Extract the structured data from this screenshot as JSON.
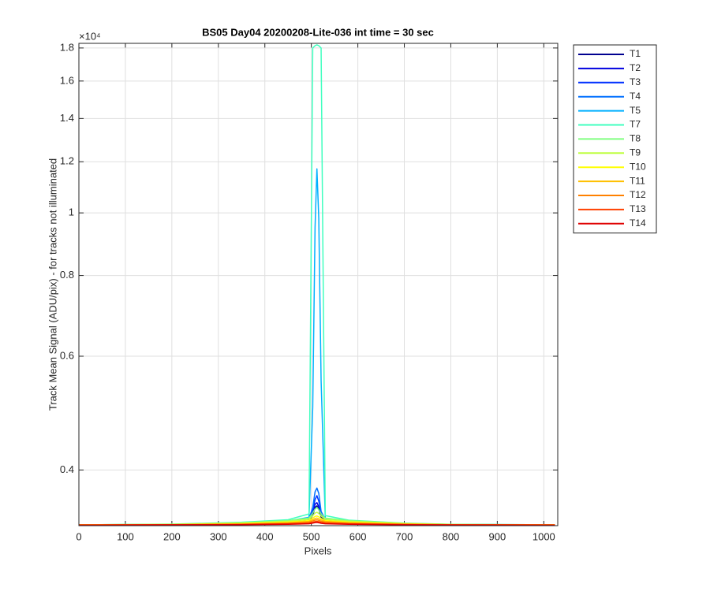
{
  "chart_data": {
    "type": "line",
    "title": "BS05 Day04 20200208-Lite-036 int time = 30 sec",
    "x_label": "Pixels",
    "y_label": "Track Mean Signal (ADU/pix) - for tracks not illuminated",
    "y_exponent_label": "×10⁴",
    "yscale": "log",
    "grid": true,
    "legend": "outside-right",
    "xlim": [
      0,
      1030
    ],
    "xticks": [
      0,
      100,
      200,
      300,
      400,
      500,
      600,
      700,
      800,
      900,
      1000
    ],
    "ylim": [
      3280,
      18300
    ],
    "yticks": [
      {
        "value": 4000,
        "label": "0.4"
      },
      {
        "value": 6000,
        "label": "0.6"
      },
      {
        "value": 8000,
        "label": "0.8"
      },
      {
        "value": 10000,
        "label": "1"
      },
      {
        "value": 12000,
        "label": "1.2"
      },
      {
        "value": 14000,
        "label": "1.4"
      },
      {
        "value": 16000,
        "label": "1.6"
      },
      {
        "value": 18000,
        "label": "1.8"
      }
    ],
    "x": [
      0,
      200,
      350,
      450,
      495,
      503,
      508,
      512,
      516,
      521,
      530,
      580,
      700,
      800,
      1024
    ],
    "series": [
      {
        "name": "T1",
        "color": "#00008f",
        "values": [
          3290,
          3292,
          3300,
          3320,
          3340,
          3400,
          3500,
          3520,
          3480,
          3380,
          3340,
          3320,
          3300,
          3292,
          3290
        ]
      },
      {
        "name": "T2",
        "color": "#0000df",
        "values": [
          3290,
          3292,
          3302,
          3322,
          3345,
          3420,
          3540,
          3560,
          3510,
          3400,
          3345,
          3322,
          3300,
          3292,
          3290
        ]
      },
      {
        "name": "T3",
        "color": "#0030ff",
        "values": [
          3290,
          3293,
          3304,
          3325,
          3350,
          3450,
          3600,
          3650,
          3580,
          3420,
          3350,
          3325,
          3302,
          3293,
          3290
        ]
      },
      {
        "name": "T4",
        "color": "#0070ff",
        "values": [
          3290,
          3294,
          3306,
          3330,
          3360,
          3500,
          3700,
          3750,
          3680,
          3450,
          3355,
          3330,
          3304,
          3294,
          3290
        ]
      },
      {
        "name": "T5",
        "color": "#00b0ff",
        "values": [
          3290,
          3295,
          3310,
          3335,
          3380,
          5000,
          9500,
          11700,
          9800,
          5500,
          3360,
          3330,
          3305,
          3295,
          3290
        ]
      },
      {
        "name": "T7",
        "color": "#40ffbf",
        "values": [
          3290,
          3298,
          3320,
          3350,
          3420,
          18000,
          18150,
          18200,
          18150,
          18000,
          3400,
          3345,
          3310,
          3296,
          3290
        ]
      },
      {
        "name": "T8",
        "color": "#80ff80",
        "values": [
          3290,
          3296,
          3315,
          3340,
          3370,
          3430,
          3480,
          3500,
          3470,
          3420,
          3370,
          3340,
          3308,
          3295,
          3290
        ]
      },
      {
        "name": "T9",
        "color": "#bfff40",
        "values": [
          3290,
          3295,
          3310,
          3332,
          3355,
          3400,
          3430,
          3440,
          3425,
          3395,
          3355,
          3332,
          3305,
          3294,
          3290
        ]
      },
      {
        "name": "T10",
        "color": "#ffff00",
        "values": [
          3289,
          3293,
          3305,
          3322,
          3340,
          3370,
          3390,
          3395,
          3385,
          3365,
          3340,
          3322,
          3302,
          3292,
          3289
        ]
      },
      {
        "name": "T11",
        "color": "#ffbf00",
        "values": [
          3289,
          3292,
          3300,
          3315,
          3330,
          3350,
          3365,
          3370,
          3360,
          3348,
          3330,
          3315,
          3299,
          3291,
          3289
        ]
      },
      {
        "name": "T12",
        "color": "#ff8000",
        "values": [
          3288,
          3291,
          3297,
          3308,
          3320,
          3335,
          3345,
          3348,
          3342,
          3332,
          3320,
          3308,
          3296,
          3290,
          3288
        ]
      },
      {
        "name": "T13",
        "color": "#ff4000",
        "values": [
          3288,
          3290,
          3294,
          3302,
          3310,
          3320,
          3328,
          3330,
          3326,
          3318,
          3310,
          3302,
          3293,
          3289,
          3288
        ]
      },
      {
        "name": "T14",
        "color": "#df0000",
        "values": [
          3287,
          3289,
          3291,
          3296,
          3302,
          3310,
          3316,
          3318,
          3314,
          3308,
          3302,
          3296,
          3290,
          3288,
          3287
        ]
      }
    ]
  }
}
